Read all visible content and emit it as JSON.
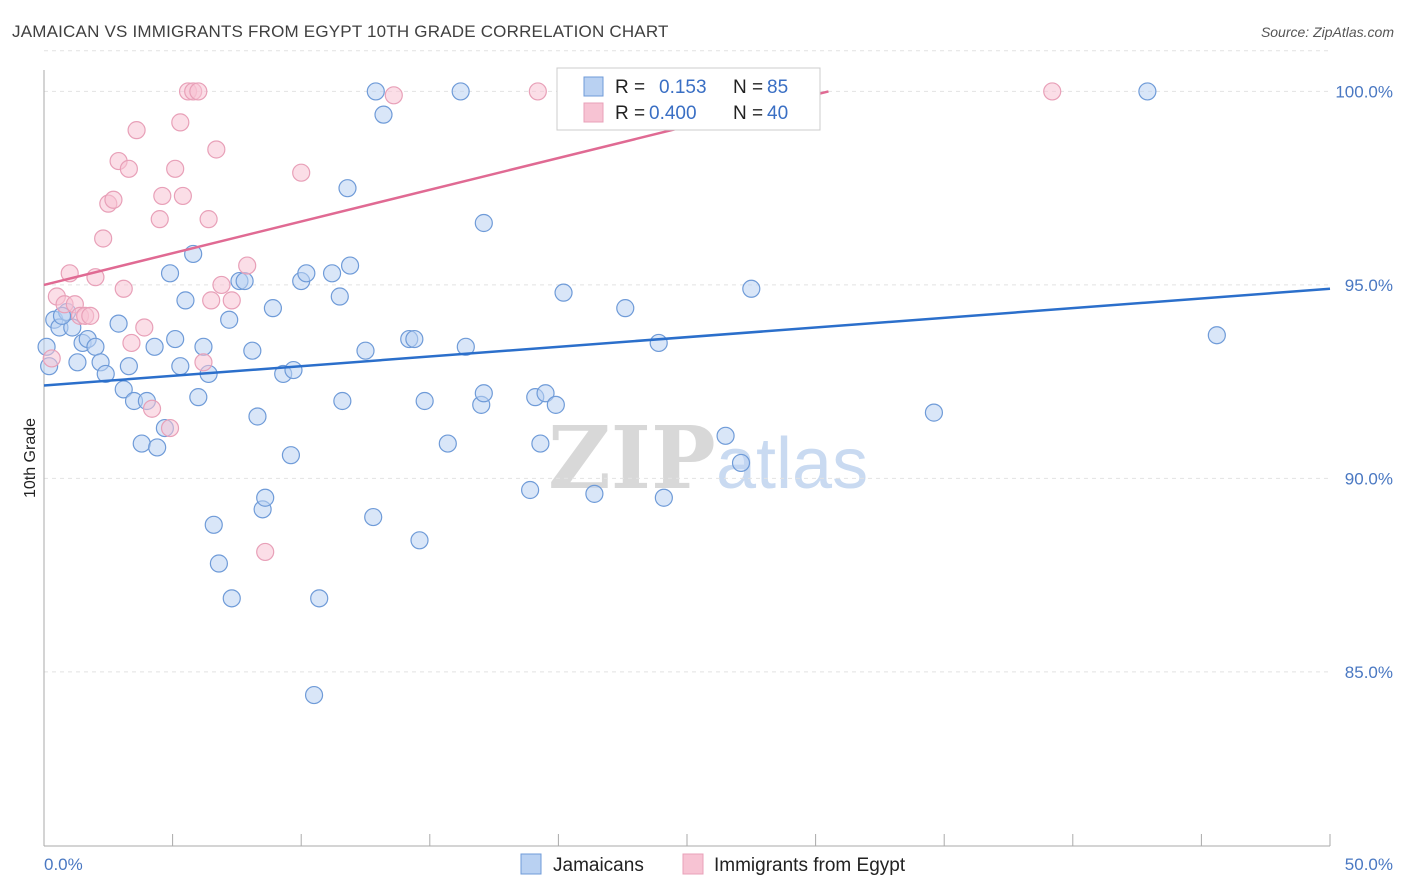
{
  "header": {
    "title": "JAMAICAN VS IMMIGRANTS FROM EGYPT 10TH GRADE CORRELATION CHART",
    "source": "Source: ZipAtlas.com"
  },
  "watermark": {
    "part1": "ZIP",
    "part2": "atlas"
  },
  "colors": {
    "blue_fill": "#b9d1f2",
    "blue_stroke": "#6f9bd8",
    "blue_line": "#2b6fcb",
    "pink_fill": "#f7c3d3",
    "pink_stroke": "#e8a0b8",
    "pink_line": "#e06a93"
  },
  "legend": {
    "rows": [
      {
        "r_label": "R =",
        "r_value": "0.153",
        "n_label": "N =",
        "n_value": "85"
      },
      {
        "r_label": "R =",
        "r_value": "0.400",
        "n_label": "N =",
        "n_value": "40"
      }
    ]
  },
  "chart_data": {
    "type": "scatter",
    "title": "JAMAICAN VS IMMIGRANTS FROM EGYPT 10TH GRADE CORRELATION CHART",
    "xlabel": "",
    "ylabel": "10th Grade",
    "xlim": [
      0,
      50
    ],
    "ylim": [
      80.5,
      101.2
    ],
    "x_tick_labels": [
      "0.0%",
      "50.0%"
    ],
    "y_ticks": [
      85,
      90,
      95,
      100
    ],
    "y_tick_labels": [
      "85.0%",
      "90.0%",
      "95.0%",
      "100.0%"
    ],
    "legend_position": "top-center",
    "series": [
      {
        "name": "Jamaicans",
        "r": 0.153,
        "n": 85,
        "trend": {
          "x": [
            0,
            50
          ],
          "y": [
            92.4,
            94.9
          ]
        },
        "points": [
          [
            0.1,
            93.4
          ],
          [
            0.4,
            94.1
          ],
          [
            0.6,
            93.9
          ],
          [
            0.9,
            94.3
          ],
          [
            1.1,
            93.9
          ],
          [
            1.3,
            93.0
          ],
          [
            1.5,
            93.5
          ],
          [
            1.7,
            93.6
          ],
          [
            2.0,
            93.4
          ],
          [
            2.2,
            93.0
          ],
          [
            2.4,
            92.7
          ],
          [
            2.9,
            94.0
          ],
          [
            3.1,
            92.3
          ],
          [
            3.3,
            92.9
          ],
          [
            3.5,
            92.0
          ],
          [
            3.8,
            90.9
          ],
          [
            4.0,
            92.0
          ],
          [
            4.3,
            93.4
          ],
          [
            4.4,
            90.8
          ],
          [
            4.7,
            91.3
          ],
          [
            4.9,
            95.3
          ],
          [
            5.1,
            93.6
          ],
          [
            5.3,
            92.9
          ],
          [
            5.5,
            94.6
          ],
          [
            5.8,
            95.8
          ],
          [
            6.0,
            92.1
          ],
          [
            6.2,
            93.4
          ],
          [
            6.4,
            92.7
          ],
          [
            6.6,
            88.8
          ],
          [
            6.8,
            87.8
          ],
          [
            7.2,
            94.1
          ],
          [
            7.3,
            86.9
          ],
          [
            7.6,
            95.1
          ],
          [
            7.8,
            95.1
          ],
          [
            8.1,
            93.3
          ],
          [
            8.3,
            91.6
          ],
          [
            8.5,
            89.2
          ],
          [
            8.6,
            89.5
          ],
          [
            8.9,
            94.4
          ],
          [
            9.3,
            92.7
          ],
          [
            9.6,
            90.6
          ],
          [
            9.7,
            92.8
          ],
          [
            10.0,
            95.1
          ],
          [
            10.2,
            95.3
          ],
          [
            10.5,
            84.4
          ],
          [
            10.7,
            86.9
          ],
          [
            11.2,
            95.3
          ],
          [
            11.5,
            94.7
          ],
          [
            11.6,
            92.0
          ],
          [
            11.8,
            97.5
          ],
          [
            11.9,
            95.5
          ],
          [
            12.5,
            93.3
          ],
          [
            12.8,
            89.0
          ],
          [
            12.9,
            100.0
          ],
          [
            13.2,
            99.4
          ],
          [
            14.2,
            93.6
          ],
          [
            14.4,
            93.6
          ],
          [
            14.6,
            88.4
          ],
          [
            14.8,
            92.0
          ],
          [
            15.7,
            90.9
          ],
          [
            16.2,
            100.0
          ],
          [
            16.4,
            93.4
          ],
          [
            17.0,
            91.9
          ],
          [
            17.1,
            92.2
          ],
          [
            17.1,
            96.6
          ],
          [
            18.9,
            89.7
          ],
          [
            19.1,
            92.1
          ],
          [
            19.3,
            90.9
          ],
          [
            19.5,
            92.2
          ],
          [
            19.9,
            91.9
          ],
          [
            20.2,
            94.8
          ],
          [
            21.4,
            89.6
          ],
          [
            22.6,
            94.4
          ],
          [
            23.9,
            93.5
          ],
          [
            24.1,
            89.5
          ],
          [
            26.5,
            91.1
          ],
          [
            26.8,
            100.0
          ],
          [
            27.1,
            90.4
          ],
          [
            27.5,
            94.9
          ],
          [
            29.3,
            100.0
          ],
          [
            34.6,
            91.7
          ],
          [
            42.9,
            100.0
          ],
          [
            45.6,
            93.7
          ],
          [
            0.2,
            92.9
          ],
          [
            0.7,
            94.2
          ]
        ]
      },
      {
        "name": "Immigrants from Egypt",
        "r": 0.4,
        "n": 40,
        "trend": {
          "x": [
            0,
            30.5
          ],
          "y": [
            95.0,
            100.0
          ]
        },
        "points": [
          [
            0.3,
            93.1
          ],
          [
            0.5,
            94.7
          ],
          [
            0.8,
            94.5
          ],
          [
            1.0,
            95.3
          ],
          [
            1.2,
            94.5
          ],
          [
            1.4,
            94.2
          ],
          [
            1.6,
            94.2
          ],
          [
            1.8,
            94.2
          ],
          [
            2.0,
            95.2
          ],
          [
            2.3,
            96.2
          ],
          [
            2.5,
            97.1
          ],
          [
            2.7,
            97.2
          ],
          [
            2.9,
            98.2
          ],
          [
            3.1,
            94.9
          ],
          [
            3.3,
            98.0
          ],
          [
            3.4,
            93.5
          ],
          [
            3.6,
            99.0
          ],
          [
            3.9,
            93.9
          ],
          [
            4.2,
            91.8
          ],
          [
            4.5,
            96.7
          ],
          [
            4.6,
            97.3
          ],
          [
            4.9,
            91.3
          ],
          [
            5.1,
            98.0
          ],
          [
            5.3,
            99.2
          ],
          [
            5.4,
            97.3
          ],
          [
            5.6,
            100.0
          ],
          [
            5.8,
            100.0
          ],
          [
            6.0,
            100.0
          ],
          [
            6.2,
            93.0
          ],
          [
            6.4,
            96.7
          ],
          [
            6.5,
            94.6
          ],
          [
            6.7,
            98.5
          ],
          [
            6.9,
            95.0
          ],
          [
            7.3,
            94.6
          ],
          [
            7.9,
            95.5
          ],
          [
            8.6,
            88.1
          ],
          [
            10.0,
            97.9
          ],
          [
            13.6,
            99.9
          ],
          [
            19.2,
            100.0
          ],
          [
            39.2,
            100.0
          ]
        ]
      }
    ]
  },
  "bottom_legend": {
    "items": [
      "Jamaicans",
      "Immigrants from Egypt"
    ]
  }
}
